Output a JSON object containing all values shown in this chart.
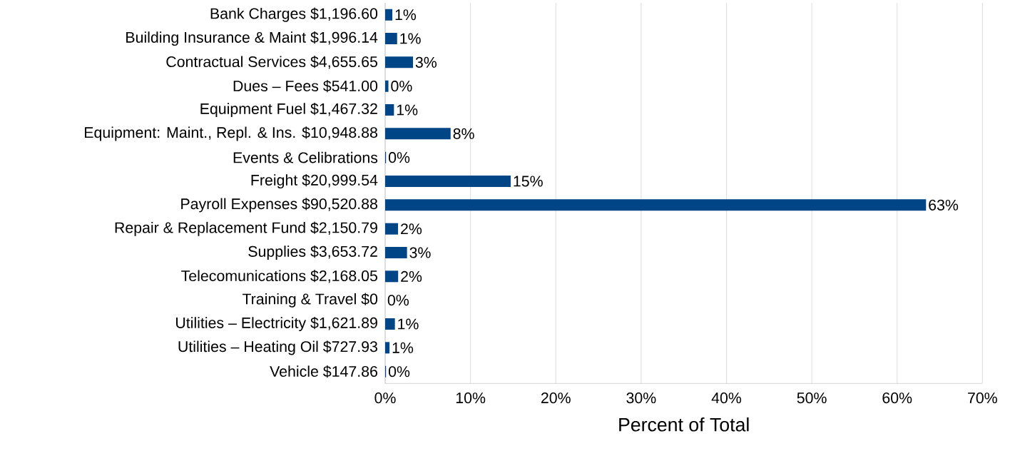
{
  "chart_data": {
    "type": "bar",
    "orientation": "horizontal",
    "xlabel": "Percent of Total",
    "categories": [
      "Bank Charges  $1,196.60",
      "Building Insurance & Maint  $1,996.14",
      "Contractual Services   $4,655.65",
      "Dues – Fees   $541.00",
      "Equipment Fuel   $1,467.32",
      "Equipment: Maint., Repl. & Ins.   $10,948.88",
      "Events & Celibrations",
      "Freight  $20,999.54",
      "Payroll Expenses $90,520.88",
      "Repair & Replacement Fund $2,150.79",
      "Supplies $3,653.72",
      "Telecomunications $2,168.05",
      "Training & Travel   $0",
      "Utilities – Electricity   $1,621.89",
      "Utilities – Heating Oil   $727.93",
      "Vehicle $147.86"
    ],
    "values": [
      0.84,
      1.4,
      3.26,
      0.38,
      1.03,
      7.67,
      0.1,
      14.71,
      63.39,
      1.51,
      2.56,
      1.52,
      0,
      1.14,
      0.51,
      0.1
    ],
    "value_labels": [
      "1%",
      "1%",
      "3%",
      "0%",
      "1%",
      "8%",
      "0%",
      "15%",
      "63%",
      "2%",
      "3%",
      "2%",
      "0%",
      "1%",
      "1%",
      "0%"
    ],
    "color": "#004586",
    "xlim": [
      0,
      70
    ],
    "xticks": [
      {
        "value": 0,
        "label": "0%"
      },
      {
        "value": 10,
        "label": "10%"
      },
      {
        "value": 20,
        "label": "20%"
      },
      {
        "value": 30,
        "label": "30%"
      },
      {
        "value": 40,
        "label": "40%"
      },
      {
        "value": 50,
        "label": "50%"
      },
      {
        "value": 60,
        "label": "60%"
      },
      {
        "value": 70,
        "label": "70%"
      }
    ],
    "grid": "x"
  }
}
